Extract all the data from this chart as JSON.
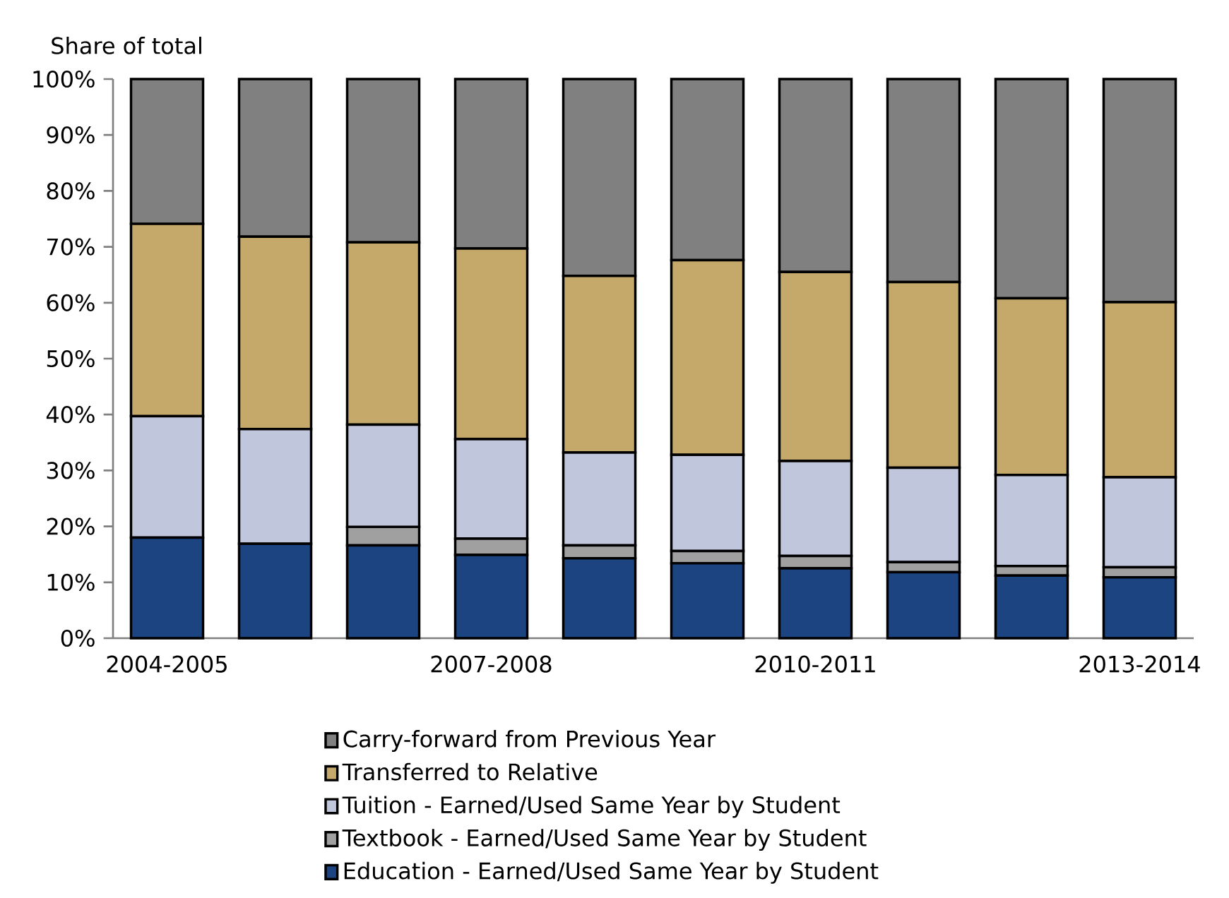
{
  "chart_data": {
    "type": "bar",
    "stacked": true,
    "ylabel": "Share of total",
    "categories": [
      "2004-2005",
      null,
      null,
      "2007-2008",
      null,
      null,
      "2010-2011",
      null,
      null,
      "2013-2014"
    ],
    "series": [
      {
        "name": "Education - Earned/Used Same Year by Student",
        "color": "#1b4480",
        "values": [
          18.0,
          16.9,
          16.6,
          14.9,
          14.3,
          13.4,
          12.5,
          11.8,
          11.2,
          10.9
        ]
      },
      {
        "name": "Textbook - Earned/Used Same Year by Student",
        "color": "#a0a0a0",
        "values": [
          0,
          0,
          3.3,
          2.9,
          2.3,
          2.2,
          2.2,
          1.8,
          1.7,
          1.8
        ]
      },
      {
        "name": "Tuition - Earned/Used Same Year by Student",
        "color": "#c0c6dc",
        "values": [
          21.7,
          20.5,
          18.3,
          17.8,
          16.6,
          17.2,
          17.0,
          16.9,
          16.3,
          16.1
        ]
      },
      {
        "name": "Transferred to Relative",
        "color": "#c4a96a",
        "values": [
          34.4,
          34.4,
          32.6,
          34.1,
          31.6,
          34.8,
          33.8,
          33.2,
          31.6,
          31.3
        ]
      },
      {
        "name": "Carry-forward from Previous Year",
        "color": "#808080",
        "values": [
          25.9,
          28.2,
          29.2,
          30.3,
          35.2,
          32.4,
          34.5,
          36.3,
          39.2,
          39.9
        ]
      }
    ],
    "ylim": [
      0,
      100
    ],
    "yticks": [
      {
        "value": 0,
        "label": "0%"
      },
      {
        "value": 10,
        "label": "10%"
      },
      {
        "value": 20,
        "label": "20%"
      },
      {
        "value": 30,
        "label": "30%"
      },
      {
        "value": 40,
        "label": "40%"
      },
      {
        "value": 50,
        "label": "50%"
      },
      {
        "value": 60,
        "label": "60%"
      },
      {
        "value": 70,
        "label": "70%"
      },
      {
        "value": 80,
        "label": "80%"
      },
      {
        "value": 90,
        "label": "90%"
      },
      {
        "value": 100,
        "label": "100%"
      }
    ],
    "legend": "bottom"
  }
}
